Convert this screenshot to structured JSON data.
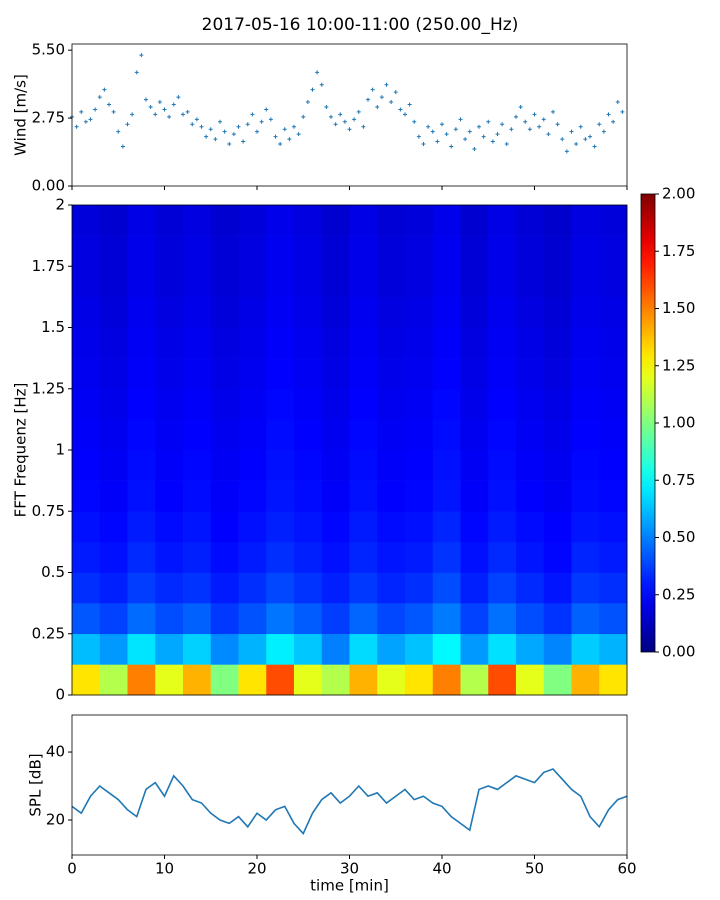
{
  "chart_data": [
    {
      "type": "scatter",
      "title": "2017-05-16 10:00-11:00 (250.00_Hz)",
      "ylabel": "Wind [m/s]",
      "marker": "+",
      "show_xticklabels": false,
      "xlim": [
        0,
        60
      ],
      "xticks": [
        0,
        10,
        20,
        30,
        40,
        50,
        60
      ],
      "ylim": [
        0,
        5.75
      ],
      "yticks": [
        {
          "value": 0,
          "label": "0.00"
        },
        2.75,
        {
          "value": 5.5,
          "label": "5.50"
        }
      ],
      "x": [
        0,
        0.5,
        1,
        1.5,
        2,
        2.5,
        3,
        3.5,
        4,
        4.5,
        5,
        5.5,
        6,
        6.5,
        7,
        7.5,
        8,
        8.5,
        9,
        9.5,
        10,
        10.5,
        11,
        11.5,
        12,
        12.5,
        13,
        13.5,
        14,
        14.5,
        15,
        15.5,
        16,
        16.5,
        17,
        17.5,
        18,
        18.5,
        19,
        19.5,
        20,
        20.5,
        21,
        21.5,
        22,
        22.5,
        23,
        23.5,
        24,
        24.5,
        25,
        25.5,
        26,
        26.5,
        27,
        27.5,
        28,
        28.5,
        29,
        29.5,
        30,
        30.5,
        31,
        31.5,
        32,
        32.5,
        33,
        33.5,
        34,
        34.5,
        35,
        35.5,
        36,
        36.5,
        37,
        37.5,
        38,
        38.5,
        39,
        39.5,
        40,
        40.5,
        41,
        41.5,
        42,
        42.5,
        43,
        43.5,
        44,
        44.5,
        45,
        45.5,
        46,
        46.5,
        47,
        47.5,
        48,
        48.5,
        49,
        49.5,
        50,
        50.5,
        51,
        51.5,
        52,
        52.5,
        53,
        53.5,
        54,
        54.5,
        55,
        55.5,
        56,
        56.5,
        57,
        57.5,
        58,
        58.5,
        59,
        59.5
      ],
      "series": [
        {
          "color": "#1f77b4",
          "values": [
            2.8,
            2.4,
            3.0,
            2.6,
            2.7,
            3.1,
            3.6,
            3.9,
            3.3,
            3.0,
            2.2,
            1.6,
            2.5,
            2.9,
            4.6,
            5.3,
            3.5,
            3.2,
            2.9,
            3.4,
            3.1,
            2.8,
            3.3,
            3.6,
            2.9,
            3.0,
            2.5,
            2.7,
            2.4,
            2.0,
            2.3,
            1.9,
            2.6,
            2.2,
            1.7,
            2.1,
            2.4,
            1.8,
            2.5,
            2.9,
            2.2,
            2.6,
            3.1,
            2.7,
            2.0,
            1.7,
            2.3,
            1.9,
            2.4,
            2.1,
            2.8,
            3.4,
            3.9,
            4.6,
            4.1,
            3.2,
            2.8,
            2.5,
            2.9,
            2.6,
            2.3,
            2.7,
            3.0,
            2.4,
            3.5,
            3.9,
            3.2,
            3.6,
            4.1,
            3.4,
            3.8,
            3.1,
            2.9,
            3.3,
            2.6,
            2.0,
            1.7,
            2.4,
            2.2,
            1.8,
            2.5,
            2.1,
            1.6,
            2.3,
            2.7,
            1.9,
            2.2,
            1.5,
            2.4,
            2.0,
            2.6,
            1.8,
            2.1,
            2.5,
            1.7,
            2.3,
            2.8,
            3.2,
            2.6,
            2.3,
            2.9,
            2.4,
            2.7,
            2.1,
            3.0,
            2.5,
            1.9,
            1.4,
            2.2,
            1.7,
            2.4,
            1.9,
            2.0,
            1.6,
            2.5,
            2.2,
            2.9,
            2.6,
            3.4,
            3.0
          ]
        }
      ]
    },
    {
      "type": "heatmap",
      "ylabel": "FFT Frequenz [Hz]",
      "colormap": "jet",
      "xlim": [
        0,
        60
      ],
      "ylim": [
        0,
        2
      ],
      "yticks": [
        0,
        0.25,
        0.5,
        0.75,
        1,
        1.25,
        1.5,
        1.75,
        2
      ],
      "xbins": [
        0,
        3,
        6,
        9,
        12,
        15,
        18,
        21,
        24,
        27,
        30,
        33,
        36,
        39,
        42,
        45,
        48,
        51,
        54,
        57,
        60
      ],
      "ybins": [
        0,
        0.125,
        0.25,
        0.375,
        0.5,
        0.625,
        0.75,
        0.875,
        1,
        1.125,
        1.25,
        1.375,
        1.5,
        1.625,
        1.75,
        1.875,
        2
      ],
      "clim": [
        0,
        2
      ],
      "cticks": [
        {
          "value": 0,
          "label": "0.00"
        },
        0.25,
        {
          "value": 0.5,
          "label": "0.50"
        },
        0.75,
        {
          "value": 1,
          "label": "1.00"
        },
        1.25,
        {
          "value": 1.5,
          "label": "1.50"
        },
        1.75,
        {
          "value": 2,
          "label": "2.00"
        }
      ],
      "z": [
        [
          1.3,
          1.1,
          1.5,
          1.2,
          1.4,
          1.0,
          1.3,
          1.6,
          1.2,
          1.1,
          1.4,
          1.2,
          1.3,
          1.5,
          1.1,
          1.6,
          1.2,
          1.0,
          1.4,
          1.3
        ],
        [
          0.62,
          0.55,
          0.7,
          0.58,
          0.66,
          0.52,
          0.6,
          0.72,
          0.64,
          0.5,
          0.68,
          0.57,
          0.63,
          0.74,
          0.55,
          0.69,
          0.58,
          0.51,
          0.65,
          0.6
        ],
        [
          0.42,
          0.38,
          0.46,
          0.4,
          0.44,
          0.36,
          0.41,
          0.48,
          0.43,
          0.37,
          0.45,
          0.39,
          0.42,
          0.49,
          0.38,
          0.47,
          0.4,
          0.35,
          0.44,
          0.41
        ],
        [
          0.34,
          0.31,
          0.37,
          0.33,
          0.35,
          0.3,
          0.34,
          0.39,
          0.35,
          0.31,
          0.36,
          0.32,
          0.34,
          0.4,
          0.31,
          0.38,
          0.33,
          0.29,
          0.36,
          0.34
        ],
        [
          0.3,
          0.28,
          0.33,
          0.29,
          0.31,
          0.27,
          0.3,
          0.34,
          0.31,
          0.28,
          0.32,
          0.29,
          0.3,
          0.35,
          0.28,
          0.33,
          0.29,
          0.26,
          0.32,
          0.3
        ],
        [
          0.28,
          0.26,
          0.3,
          0.27,
          0.29,
          0.25,
          0.28,
          0.31,
          0.29,
          0.26,
          0.3,
          0.27,
          0.28,
          0.32,
          0.26,
          0.3,
          0.27,
          0.25,
          0.29,
          0.28
        ],
        [
          0.26,
          0.24,
          0.28,
          0.25,
          0.27,
          0.24,
          0.26,
          0.29,
          0.27,
          0.24,
          0.28,
          0.25,
          0.26,
          0.29,
          0.24,
          0.28,
          0.25,
          0.23,
          0.27,
          0.26
        ],
        [
          0.25,
          0.23,
          0.27,
          0.24,
          0.26,
          0.23,
          0.25,
          0.28,
          0.26,
          0.23,
          0.27,
          0.24,
          0.25,
          0.28,
          0.23,
          0.27,
          0.24,
          0.22,
          0.26,
          0.25
        ],
        [
          0.24,
          0.22,
          0.26,
          0.23,
          0.25,
          0.22,
          0.24,
          0.27,
          0.25,
          0.22,
          0.26,
          0.23,
          0.24,
          0.27,
          0.22,
          0.26,
          0.23,
          0.21,
          0.25,
          0.24
        ],
        [
          0.23,
          0.21,
          0.25,
          0.22,
          0.24,
          0.21,
          0.23,
          0.26,
          0.24,
          0.21,
          0.25,
          0.22,
          0.23,
          0.26,
          0.21,
          0.25,
          0.22,
          0.2,
          0.24,
          0.23
        ],
        [
          0.22,
          0.2,
          0.24,
          0.21,
          0.23,
          0.2,
          0.22,
          0.25,
          0.23,
          0.2,
          0.24,
          0.21,
          0.22,
          0.25,
          0.2,
          0.24,
          0.21,
          0.19,
          0.23,
          0.22
        ],
        [
          0.21,
          0.19,
          0.23,
          0.2,
          0.22,
          0.19,
          0.21,
          0.24,
          0.22,
          0.19,
          0.23,
          0.2,
          0.21,
          0.24,
          0.19,
          0.23,
          0.2,
          0.18,
          0.22,
          0.21
        ],
        [
          0.2,
          0.18,
          0.22,
          0.19,
          0.21,
          0.18,
          0.2,
          0.23,
          0.21,
          0.18,
          0.22,
          0.19,
          0.2,
          0.23,
          0.18,
          0.22,
          0.19,
          0.17,
          0.21,
          0.2
        ],
        [
          0.19,
          0.17,
          0.21,
          0.18,
          0.2,
          0.17,
          0.19,
          0.22,
          0.2,
          0.17,
          0.21,
          0.18,
          0.19,
          0.22,
          0.17,
          0.21,
          0.18,
          0.16,
          0.2,
          0.19
        ],
        [
          0.19,
          0.17,
          0.21,
          0.18,
          0.2,
          0.17,
          0.19,
          0.22,
          0.2,
          0.17,
          0.21,
          0.18,
          0.19,
          0.22,
          0.17,
          0.21,
          0.18,
          0.16,
          0.2,
          0.19
        ],
        [
          0.18,
          0.16,
          0.2,
          0.17,
          0.19,
          0.16,
          0.18,
          0.21,
          0.19,
          0.16,
          0.2,
          0.17,
          0.18,
          0.21,
          0.16,
          0.2,
          0.17,
          0.15,
          0.19,
          0.18
        ]
      ]
    },
    {
      "type": "line",
      "ylabel": "SPL [dB]",
      "xlabel": "time [min]",
      "show_xticklabels": true,
      "xlim": [
        0,
        60
      ],
      "xticks": [
        0,
        10,
        20,
        30,
        40,
        50,
        60
      ],
      "ylim": [
        9.7,
        50.9
      ],
      "yticks": [
        20,
        40
      ],
      "x": [
        0,
        1,
        2,
        3,
        4,
        5,
        6,
        7,
        8,
        9,
        10,
        11,
        12,
        13,
        14,
        15,
        16,
        17,
        18,
        19,
        20,
        21,
        22,
        23,
        24,
        25,
        26,
        27,
        28,
        29,
        30,
        31,
        32,
        33,
        34,
        35,
        36,
        37,
        38,
        39,
        40,
        41,
        42,
        43,
        44,
        45,
        46,
        47,
        48,
        49,
        50,
        51,
        52,
        53,
        54,
        55,
        56,
        57,
        58,
        59,
        60
      ],
      "series": [
        {
          "color": "#1f77b4",
          "values": [
            24,
            22,
            27,
            30,
            28,
            26,
            23,
            21,
            29,
            31,
            27,
            33,
            30,
            26,
            25,
            22,
            20,
            19,
            21,
            18,
            22,
            20,
            23,
            24,
            19,
            16,
            22,
            26,
            28,
            25,
            27,
            30,
            27,
            28,
            25,
            27,
            29,
            26,
            27,
            25,
            24,
            21,
            19,
            17,
            29,
            30,
            29,
            31,
            33,
            32,
            31,
            34,
            35,
            32,
            29,
            27,
            21,
            18,
            23,
            26,
            27
          ]
        }
      ]
    }
  ]
}
